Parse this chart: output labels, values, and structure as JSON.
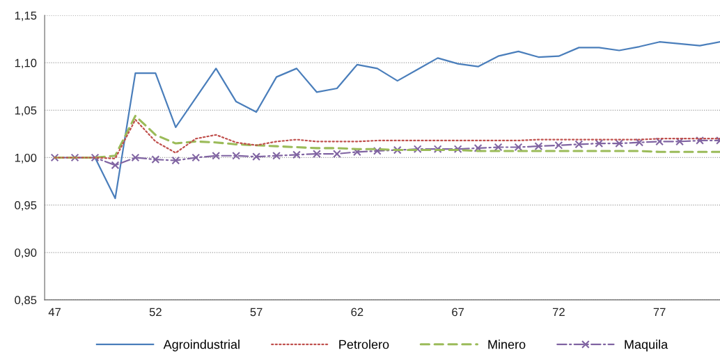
{
  "chart_data": {
    "type": "line",
    "x": [
      47,
      48,
      49,
      50,
      51,
      52,
      53,
      54,
      55,
      56,
      57,
      58,
      59,
      60,
      61,
      62,
      63,
      64,
      65,
      66,
      67,
      68,
      69,
      70,
      71,
      72,
      73,
      74,
      75,
      76,
      77,
      78,
      79,
      80
    ],
    "series": [
      {
        "name": "Agroindustrial",
        "color": "#4a7ebb",
        "line_style": "solid",
        "marker": "none",
        "values": [
          1.0,
          1.0,
          1.0,
          0.957,
          1.089,
          1.089,
          1.032,
          1.063,
          1.094,
          1.059,
          1.048,
          1.085,
          1.094,
          1.069,
          1.073,
          1.098,
          1.094,
          1.081,
          1.093,
          1.105,
          1.099,
          1.096,
          1.107,
          1.112,
          1.106,
          1.107,
          1.116,
          1.116,
          1.113,
          1.117,
          1.122,
          1.12,
          1.118,
          1.122
        ]
      },
      {
        "name": "Petrolero",
        "color": "#c0504d",
        "line_style": "dotted",
        "marker": "none",
        "values": [
          1.0,
          1.0,
          1.0,
          0.999,
          1.04,
          1.017,
          1.005,
          1.02,
          1.024,
          1.016,
          1.013,
          1.017,
          1.019,
          1.017,
          1.017,
          1.017,
          1.018,
          1.018,
          1.018,
          1.018,
          1.018,
          1.018,
          1.018,
          1.018,
          1.019,
          1.019,
          1.019,
          1.019,
          1.019,
          1.019,
          1.02,
          1.02,
          1.02,
          1.02
        ]
      },
      {
        "name": "Minero",
        "color": "#9bbb59",
        "line_style": "dashed",
        "marker": "none",
        "values": [
          1.0,
          1.0,
          1.0,
          1.002,
          1.044,
          1.024,
          1.015,
          1.017,
          1.016,
          1.014,
          1.013,
          1.012,
          1.011,
          1.01,
          1.01,
          1.009,
          1.009,
          1.008,
          1.008,
          1.008,
          1.008,
          1.007,
          1.007,
          1.007,
          1.007,
          1.007,
          1.007,
          1.007,
          1.007,
          1.007,
          1.006,
          1.006,
          1.006,
          1.006
        ]
      },
      {
        "name": "Maquila",
        "color": "#8064a2",
        "line_style": "dashdot",
        "marker": "cross",
        "values": [
          1.0,
          1.0,
          1.0,
          0.992,
          1.0,
          0.998,
          0.997,
          1.0,
          1.002,
          1.002,
          1.001,
          1.002,
          1.003,
          1.004,
          1.004,
          1.006,
          1.007,
          1.008,
          1.009,
          1.009,
          1.009,
          1.01,
          1.011,
          1.011,
          1.012,
          1.013,
          1.014,
          1.015,
          1.015,
          1.016,
          1.017,
          1.017,
          1.018,
          1.018
        ]
      }
    ],
    "xlim": [
      46.5,
      80
    ],
    "xticks": [
      47,
      52,
      57,
      62,
      67,
      72,
      77
    ],
    "ylim": [
      0.85,
      1.15
    ],
    "yticks": [
      {
        "value": 0.85,
        "label": "0,85"
      },
      {
        "value": 0.9,
        "label": "0,90"
      },
      {
        "value": 0.95,
        "label": "0,95"
      },
      {
        "value": 1.0,
        "label": "1,00"
      },
      {
        "value": 1.05,
        "label": "1,05"
      },
      {
        "value": 1.1,
        "label": "1,10"
      },
      {
        "value": 1.15,
        "label": "1,15"
      }
    ],
    "grid": "y",
    "legend": "bottom"
  }
}
